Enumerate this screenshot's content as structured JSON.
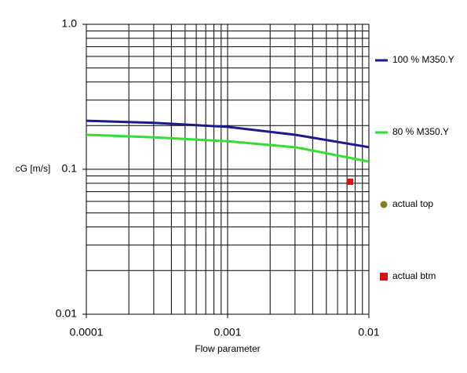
{
  "chart_data": {
    "type": "line",
    "y_label": "cG [m/s]",
    "x_label": "Flow parameter",
    "xscale": "log",
    "yscale": "log",
    "xlim": [
      0.0001,
      0.01
    ],
    "xticks": [
      0.0001,
      0.001,
      0.01
    ],
    "ylim": [
      0.01,
      1
    ],
    "yticks": [
      0.01,
      0.1,
      {
        "value": 1,
        "label": "1.0"
      }
    ],
    "grid": true,
    "legend": "right",
    "series": [
      {
        "name": "100 % M350.Y",
        "color": "#1a1a8c",
        "marker": "line",
        "x": [
          0.0001,
          0.0003,
          0.001,
          0.003,
          0.01
        ],
        "values": [
          0.216,
          0.209,
          0.196,
          0.173,
          0.142
        ]
      },
      {
        "name": "80 % M350.Y",
        "color": "#33dd33",
        "marker": "line",
        "x": [
          0.0001,
          0.0003,
          0.001,
          0.003,
          0.01
        ],
        "values": [
          0.173,
          0.166,
          0.156,
          0.142,
          0.113
        ]
      },
      {
        "name": "actual top",
        "color": "#808020",
        "marker": "circle",
        "x": [],
        "values": []
      },
      {
        "name": "actual btm",
        "color": "#dd1111",
        "marker": "square",
        "x": [
          0.00736
        ],
        "values": [
          0.082
        ]
      }
    ]
  }
}
